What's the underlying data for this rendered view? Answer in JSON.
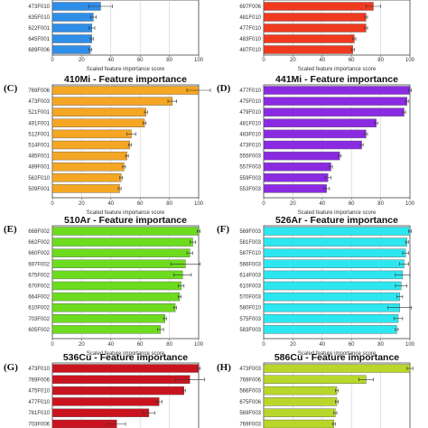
{
  "chart_data": [
    {
      "panel": "A",
      "panel_label": "",
      "type": "bar",
      "orientation": "horizontal",
      "title": "",
      "xlabel": "Scaled feature importance score",
      "xlim": [
        0,
        100
      ],
      "xticks": [
        0,
        20,
        40,
        60,
        80,
        100
      ],
      "color": "#2f8ee8",
      "categories": [
        "473F010",
        "635F010",
        "622F001",
        "645F001",
        "689F006"
      ],
      "values": [
        33,
        28,
        27,
        27,
        26
      ],
      "errors": [
        8,
        2,
        2,
        1,
        1
      ]
    },
    {
      "panel": "B",
      "panel_label": "",
      "type": "bar",
      "orientation": "horizontal",
      "title": "",
      "xlabel": "Scaled feature importance score",
      "xlim": [
        0,
        100
      ],
      "xticks": [
        0,
        20,
        40,
        60,
        80,
        100
      ],
      "color": "#f03a20",
      "categories": [
        "697F006",
        "481F010",
        "477F010",
        "483F010",
        "487F010"
      ],
      "values": [
        75,
        70,
        70,
        62,
        61
      ],
      "errors": [
        5,
        1,
        1,
        1,
        1
      ]
    },
    {
      "panel": "C",
      "panel_label": "(C)",
      "type": "bar",
      "orientation": "horizontal",
      "title": "410Mi - Feature importance",
      "xlabel": "Scaled feature importance score",
      "xlim": [
        0,
        100
      ],
      "xticks": [
        0,
        20,
        40,
        60,
        80,
        100
      ],
      "color": "#f5a623",
      "categories": [
        "769F006",
        "473F003",
        "521F001",
        "491F001",
        "512F001",
        "514F001",
        "485F001",
        "489F001",
        "562F010",
        "509F001"
      ],
      "values": [
        100,
        82,
        64,
        63,
        54,
        53,
        51,
        49,
        47,
        46
      ],
      "errors": [
        8,
        3,
        1,
        1,
        3,
        1,
        1,
        1,
        1,
        1
      ]
    },
    {
      "panel": "D",
      "panel_label": "(D)",
      "type": "bar",
      "orientation": "horizontal",
      "title": "441Mi - Feature importance",
      "xlabel": "Scaled feature importance score",
      "xlim": [
        0,
        100
      ],
      "xticks": [
        0,
        20,
        40,
        60,
        80,
        100
      ],
      "color": "#8a2be2",
      "categories": [
        "477F010",
        "475F010",
        "479F010",
        "481F010",
        "483F010",
        "473F010",
        "555F003",
        "557F003",
        "559F003",
        "553F003"
      ],
      "values": [
        100,
        98,
        96,
        77,
        70,
        67,
        52,
        46,
        44,
        43
      ],
      "errors": [
        1,
        1,
        1,
        1,
        1,
        1,
        1,
        1,
        2,
        2
      ]
    },
    {
      "panel": "E",
      "panel_label": "(E)",
      "type": "bar",
      "orientation": "horizontal",
      "title": "510Ar - Feature importance",
      "xlabel": "Scaled feature importance score",
      "xlim": [
        0,
        100
      ],
      "xticks": [
        0,
        20,
        40,
        60,
        80,
        100
      ],
      "color": "#6ddc1e",
      "categories": [
        "668F002",
        "662F002",
        "660F002",
        "697F002",
        "675F002",
        "670F002",
        "664F002",
        "610F002",
        "703F002",
        "605F002"
      ],
      "values": [
        100,
        96,
        94,
        91,
        89,
        88,
        87,
        84,
        77,
        74
      ],
      "errors": [
        1,
        2,
        2,
        10,
        6,
        2,
        1,
        1,
        1,
        2
      ]
    },
    {
      "panel": "F",
      "panel_label": "(F)",
      "type": "bar",
      "orientation": "horizontal",
      "title": "526Ar - Feature importance",
      "xlabel": "Scaled feature importance score",
      "xlim": [
        0,
        100
      ],
      "xticks": [
        0,
        20,
        40,
        60,
        80,
        100
      ],
      "color": "#2de7f0",
      "categories": [
        "569F003",
        "581F003",
        "587F010",
        "566F003",
        "614F003",
        "610F003",
        "570F003",
        "580F010",
        "575F003",
        "583F003"
      ],
      "values": [
        100,
        98,
        97,
        96,
        95,
        94,
        93,
        93,
        92,
        91
      ],
      "errors": [
        1,
        1,
        2,
        3,
        5,
        4,
        2,
        8,
        3,
        1
      ]
    },
    {
      "panel": "G",
      "panel_label": "(G)",
      "type": "bar",
      "orientation": "horizontal",
      "title": "536Cu - Feature importance",
      "xlabel": "",
      "xlim": [
        0,
        100
      ],
      "xticks": [
        0,
        20,
        40,
        60,
        80,
        100
      ],
      "color": "#c9141f",
      "categories": [
        "473F010",
        "769F006",
        "475F010",
        "477F010",
        "781F010",
        "703F006"
      ],
      "values": [
        100,
        94,
        90,
        73,
        66,
        44
      ],
      "errors": [
        1,
        10,
        1,
        2,
        4,
        6
      ]
    },
    {
      "panel": "H",
      "panel_label": "(H)",
      "type": "bar",
      "orientation": "horizontal",
      "title": "586Cu - Feature importance",
      "xlabel": "",
      "xlim": [
        0,
        100
      ],
      "xticks": [
        0,
        20,
        40,
        60,
        80,
        100
      ],
      "color": "#b8d72a",
      "categories": [
        "473F003",
        "769F006",
        "566F003",
        "675F006",
        "569F003",
        "769F003"
      ],
      "values": [
        100,
        70,
        50,
        50,
        49,
        48
      ],
      "errors": [
        2,
        5,
        1,
        1,
        1,
        1
      ]
    }
  ]
}
